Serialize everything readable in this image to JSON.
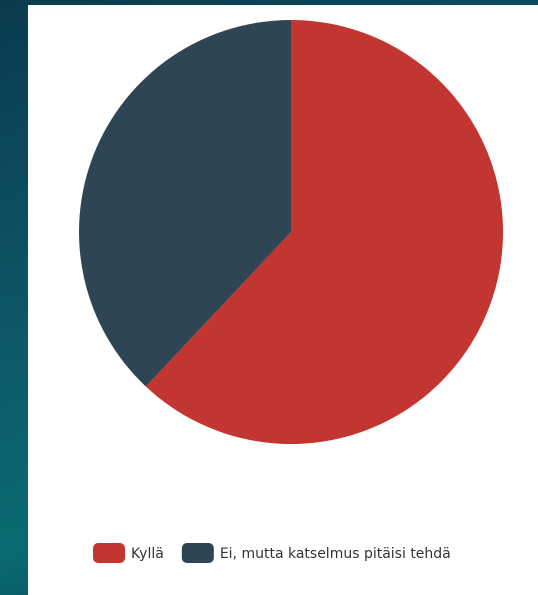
{
  "chart_data": {
    "type": "pie",
    "categories": [
      "Kyllä",
      "Ei, mutta katselmus pitäisi tehdä"
    ],
    "values": [
      62,
      38
    ],
    "colors": [
      "#c23531",
      "#2f4554"
    ],
    "legend": "bottom"
  }
}
